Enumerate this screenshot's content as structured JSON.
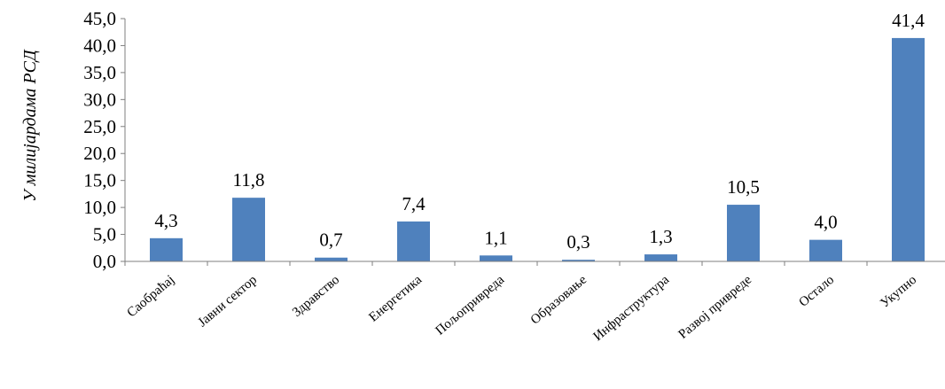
{
  "chart_data": {
    "type": "bar",
    "ylabel": "У милијардама РСД",
    "xlabel": "",
    "title": "",
    "ylim": [
      0,
      45
    ],
    "ytick_step": 5,
    "yticks": [
      "0,0",
      "5,0",
      "10,0",
      "15,0",
      "20,0",
      "25,0",
      "30,0",
      "35,0",
      "40,0",
      "45,0"
    ],
    "categories": [
      "Саобраћај",
      "Јавни сектор",
      "Здравство",
      "Енергетика",
      "Пољопривреда",
      "Образовање",
      "Инфраструктура",
      "Развој привреде",
      "Остало",
      "Укупно"
    ],
    "values": [
      4.3,
      11.8,
      0.7,
      7.4,
      1.1,
      0.3,
      1.3,
      10.5,
      4.0,
      41.4
    ],
    "value_labels": [
      "4,3",
      "11,8",
      "0,7",
      "7,4",
      "1,1",
      "0,3",
      "1,3",
      "10,5",
      "4,0",
      "41,4"
    ],
    "bar_color": "#4f81bd",
    "grid": false,
    "legend": "none"
  }
}
